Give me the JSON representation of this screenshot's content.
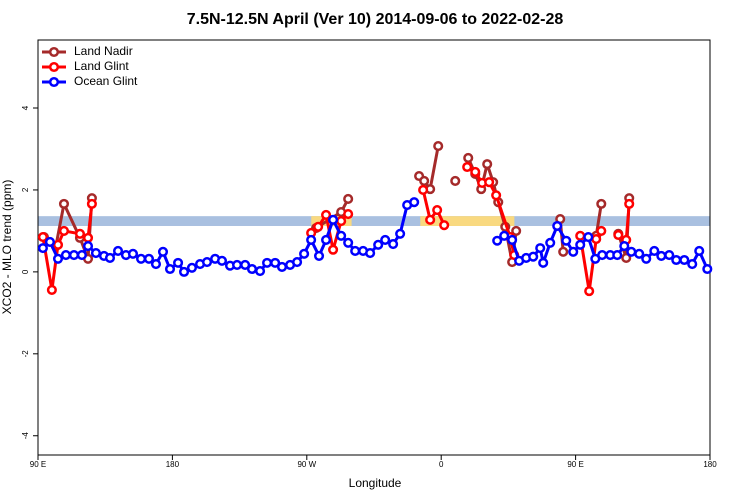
{
  "chart_data": {
    "type": "line",
    "title": "7.5N-12.5N April (Ver 10)   2014-09-06 to 2022-02-28",
    "x_label": "Longitude",
    "y_label": "XCO2 - MLO trend (ppm)",
    "xlim": [
      90,
      540
    ],
    "ylim": [
      -4.47,
      5.66
    ],
    "xticks": [
      {
        "value": 90,
        "label": "90 E"
      },
      {
        "value": 180,
        "label": "180"
      },
      {
        "value": 270,
        "label": "90 W"
      },
      {
        "value": 360,
        "label": "0"
      },
      {
        "value": 450,
        "label": "90 E"
      },
      {
        "value": 540,
        "label": "180"
      }
    ],
    "yticks": [
      4,
      2,
      0,
      -2,
      -4
    ],
    "legend": "top-left",
    "reference_band": [
      1.12,
      1.36
    ],
    "band_color": "#a9c0e0",
    "highlight_ranges": [
      [
        273,
        300
      ],
      [
        346,
        409
      ]
    ],
    "highlight_color": "#f9d980",
    "series": [
      {
        "name": "Land Nadir",
        "color": "#a52a2a",
        "x": [
          94.0,
          102.0,
          107.4,
          118.1,
          123.5,
          126.1,
          200,
          276.2,
          293.0,
          297.7,
          320,
          345.2,
          348.6,
          352.6,
          358.0,
          360,
          369.4,
          370,
          378.1,
          382.8,
          386.8,
          390.8,
          394.8,
          398.2,
          402.9,
          407.5,
          410.2,
          430,
          439.7,
          441.7,
          450,
          463.8,
          467.2,
          472,
          478.6,
          483.9,
          485.9
        ],
        "values": [
          0.85,
          0.63,
          1.66,
          0.83,
          0.32,
          1.8,
          null,
          1.07,
          1.46,
          1.78,
          null,
          2.34,
          2.22,
          2.02,
          3.07,
          null,
          2.22,
          null,
          2.78,
          2.39,
          2.02,
          2.63,
          2.19,
          1.7,
          1.1,
          0.24,
          1.0,
          null,
          1.29,
          0.49,
          null,
          0.88,
          1.66,
          null,
          0.93,
          0.34,
          1.8
        ]
      },
      {
        "name": "Land Glint",
        "color": "#ff0000",
        "x": [
          93.3,
          99.3,
          103.4,
          107.4,
          118.1,
          123.5,
          126.1,
          200,
          272.9,
          277.6,
          282.9,
          287.6,
          293.0,
          297.7,
          320,
          347.9,
          352.6,
          357.3,
          362.0,
          365,
          377.4,
          382.8,
          387.4,
          392.1,
          396.8,
          406.2,
          408.9,
          430,
          453.1,
          459.1,
          463.8,
          467.2,
          472,
          478.6,
          483.9,
          485.9
        ],
        "values": [
          0.85,
          -0.44,
          0.66,
          1.0,
          0.93,
          0.83,
          1.66,
          null,
          0.95,
          1.1,
          1.39,
          0.54,
          1.24,
          1.41,
          null,
          2.0,
          1.27,
          1.51,
          1.14,
          null,
          2.56,
          2.44,
          2.17,
          2.19,
          1.87,
          0.85,
          0.41,
          null,
          0.88,
          -0.47,
          0.8,
          1.0,
          null,
          0.9,
          0.78,
          1.66
        ]
      },
      {
        "name": "Ocean Glint",
        "color": "#0000ff",
        "x": [
          93.3,
          98.0,
          103.4,
          108.7,
          114.1,
          119.4,
          123.5,
          128.8,
          134.2,
          138.2,
          143.6,
          148.9,
          153.6,
          159.0,
          164.3,
          169.0,
          173.7,
          178.4,
          183.8,
          187.8,
          193.1,
          198.5,
          203.2,
          208.6,
          213.2,
          218.6,
          223.3,
          228.7,
          233.3,
          238.7,
          243.4,
          248.8,
          253.4,
          258.8,
          263.5,
          268.2,
          272.9,
          278.2,
          282.9,
          287.6,
          293.0,
          297.7,
          302.4,
          307.7,
          312.4,
          317.8,
          322.5,
          327.8,
          332.5,
          337.2,
          341.9,
          400,
          397.5,
          402.2,
          407.5,
          412.2,
          416.9,
          421.6,
          426.3,
          428.3,
          433.0,
          437.7,
          443.7,
          448.4,
          453.1,
          458.5,
          463.2,
          467.8,
          473.2,
          477.9,
          482.6,
          487.3,
          492.6,
          497.3,
          502.7,
          507.4,
          512.7,
          517.4,
          522.8,
          528.1,
          532.8,
          538.2
        ],
        "values": [
          0.58,
          0.73,
          0.32,
          0.41,
          0.41,
          0.41,
          0.63,
          0.46,
          0.39,
          0.34,
          0.51,
          0.41,
          0.44,
          0.32,
          0.32,
          0.19,
          0.49,
          0.07,
          0.22,
          0.0,
          0.1,
          0.19,
          0.24,
          0.32,
          0.27,
          0.15,
          0.17,
          0.17,
          0.07,
          0.02,
          0.22,
          0.22,
          0.12,
          0.17,
          0.24,
          0.44,
          0.78,
          0.39,
          0.78,
          1.27,
          0.88,
          0.71,
          0.51,
          0.51,
          0.46,
          0.66,
          0.78,
          0.68,
          0.93,
          1.63,
          1.7,
          null,
          0.76,
          0.88,
          0.78,
          0.27,
          0.34,
          0.37,
          0.58,
          0.22,
          0.71,
          1.12,
          0.76,
          0.49,
          0.66,
          0.85,
          0.32,
          0.41,
          0.41,
          0.41,
          0.63,
          0.49,
          0.44,
          0.32,
          0.51,
          0.39,
          0.41,
          0.29,
          0.29,
          0.19,
          0.51,
          0.07
        ]
      }
    ]
  }
}
